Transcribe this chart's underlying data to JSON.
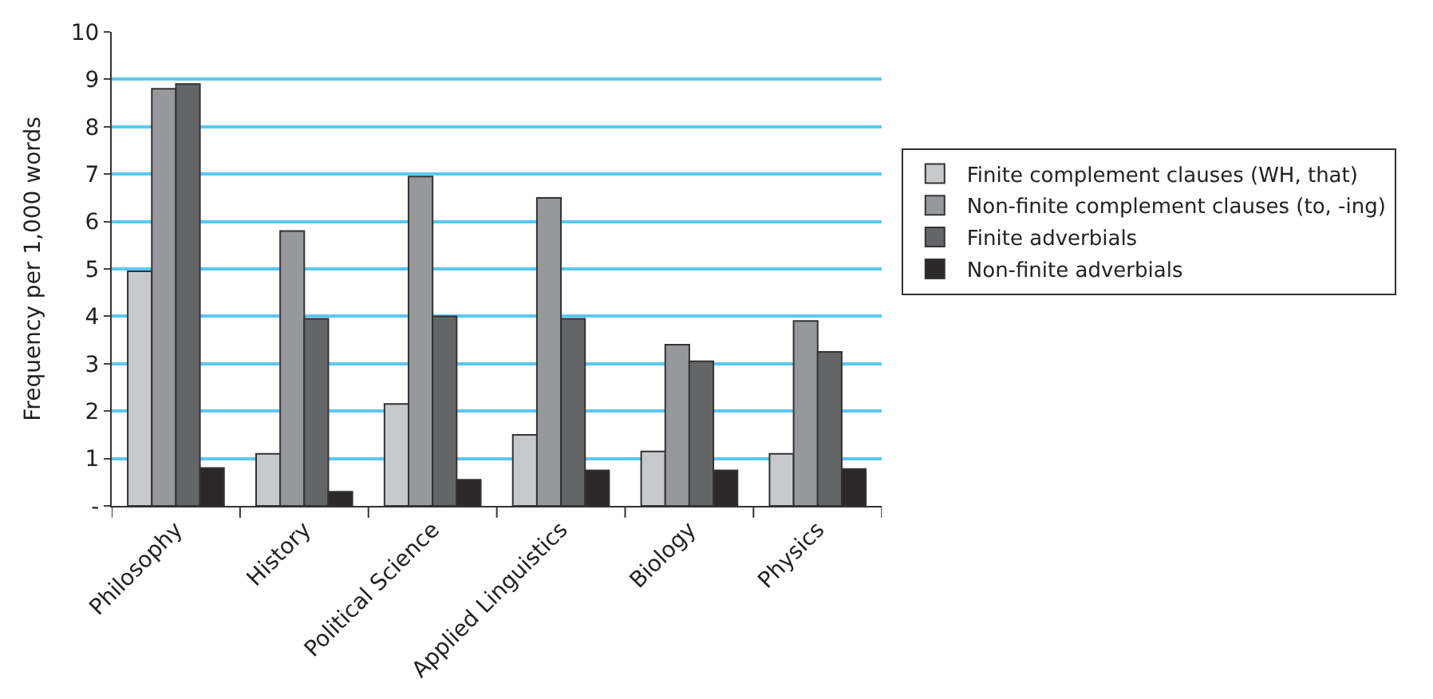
{
  "chart_data": {
    "type": "bar",
    "ylabel": "Frequency per 1,000 words",
    "categories": [
      "Philosophy",
      "History",
      "Political Science",
      "Applied Linguistics",
      "Biology",
      "Physics"
    ],
    "series": [
      {
        "name": "Finite complement clauses (WH, that)",
        "color": "#c8c9cb",
        "values": [
          4.95,
          1.1,
          2.15,
          1.5,
          1.15,
          1.1
        ]
      },
      {
        "name": "Non-finite complement clauses (to, -ing)",
        "color": "#97989b",
        "values": [
          8.8,
          5.8,
          6.95,
          6.5,
          3.4,
          3.9
        ]
      },
      {
        "name": "Finite adverbials",
        "color": "#646567",
        "values": [
          8.9,
          3.95,
          4.0,
          3.95,
          3.05,
          3.25
        ]
      },
      {
        "name": "Non-finite adverbials",
        "color": "#2a2829",
        "values": [
          0.8,
          0.3,
          0.55,
          0.75,
          0.75,
          0.78
        ]
      }
    ],
    "ylim": [
      0,
      10
    ],
    "yticks": [
      {
        "value": 0,
        "label": "-"
      },
      1,
      2,
      3,
      4,
      5,
      6,
      7,
      8,
      9,
      10
    ],
    "grid": "y",
    "legend": "right"
  }
}
